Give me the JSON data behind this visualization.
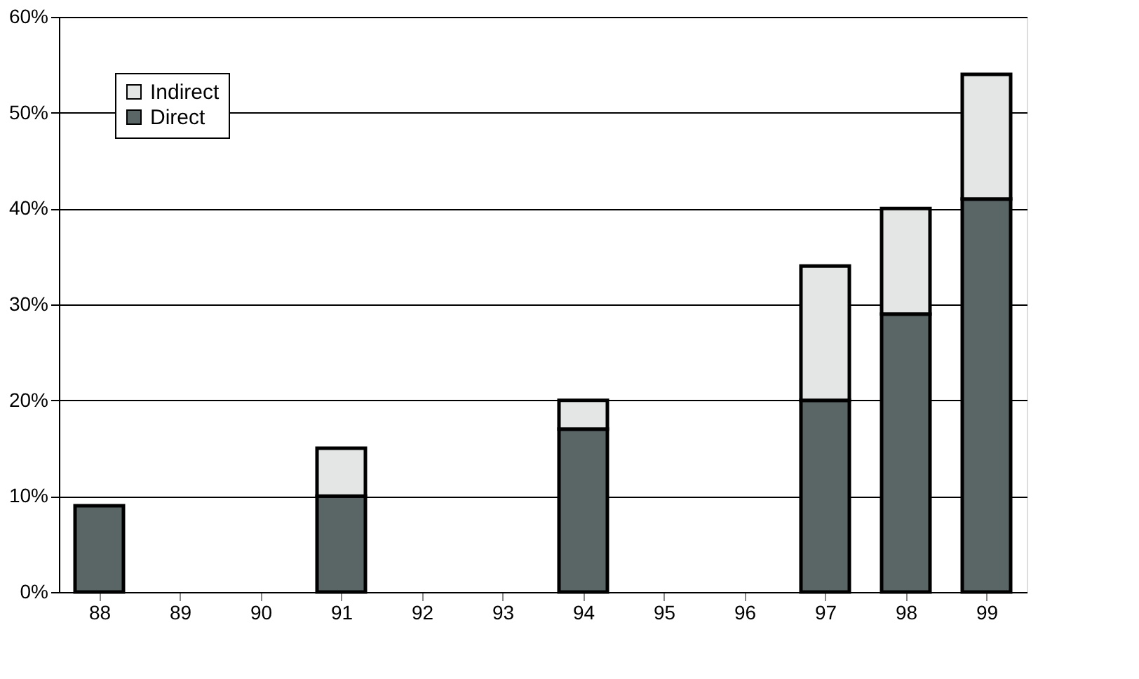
{
  "chart_data": {
    "type": "bar",
    "stacked": true,
    "categories": [
      "88",
      "89",
      "90",
      "91",
      "92",
      "93",
      "94",
      "95",
      "96",
      "97",
      "98",
      "99"
    ],
    "series": [
      {
        "name": "Direct",
        "color": "#5a6566",
        "values": [
          9,
          null,
          null,
          10,
          null,
          null,
          17,
          null,
          null,
          20,
          29,
          41
        ]
      },
      {
        "name": "Indirect",
        "color": "#e4e6e6",
        "values": [
          null,
          null,
          null,
          5,
          null,
          null,
          3,
          null,
          null,
          14,
          11,
          13
        ]
      }
    ],
    "ylim": [
      0,
      60
    ],
    "yticks": [
      {
        "value": 0,
        "label": "0%"
      },
      {
        "value": 10,
        "label": "10%"
      },
      {
        "value": 20,
        "label": "20%"
      },
      {
        "value": 30,
        "label": "30%"
      },
      {
        "value": 40,
        "label": "40%"
      },
      {
        "value": 50,
        "label": "50%"
      },
      {
        "value": 60,
        "label": "60%"
      }
    ],
    "grid": "y",
    "legend": "top left"
  }
}
